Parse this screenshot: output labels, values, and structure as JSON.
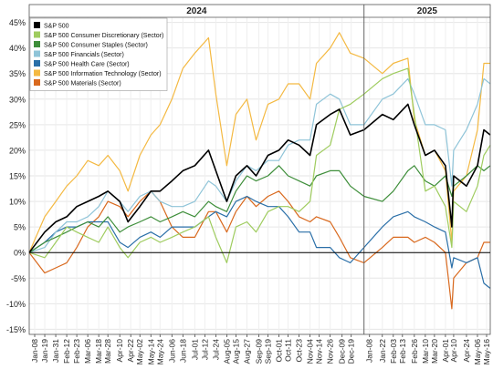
{
  "chart_data": {
    "type": "line",
    "title": "",
    "xlabel": "",
    "ylabel": "",
    "ylim": [
      -0.16,
      0.46
    ],
    "yticks": [
      "45%",
      "40%",
      "35%",
      "30%",
      "25%",
      "20%",
      "15%",
      "10%",
      "5%",
      "0%",
      "-5%",
      "-10%",
      "-15%"
    ],
    "ytick_values": [
      0.45,
      0.4,
      0.35,
      0.3,
      0.25,
      0.2,
      0.15,
      0.1,
      0.05,
      0.0,
      -0.05,
      -0.1,
      -0.15
    ],
    "year_labels": [
      "2024",
      "2025"
    ],
    "x_start": "2024-01-02",
    "x_end": "2025-05-20",
    "year_divider": "2025-01-02",
    "xticks": [
      "Jan-08",
      "Jan-19",
      "Jan-31",
      "Feb-12",
      "Feb-23",
      "Mar-06",
      "Mar-18",
      "Mar-28",
      "Apr-10",
      "Apr-22",
      "May-02",
      "May-14",
      "May-24",
      "Jun-06",
      "Jun-18",
      "Jul-01",
      "Jul-12",
      "Jul-24",
      "Aug-05",
      "Aug-15",
      "Aug-27",
      "Sep-09",
      "Sep-19",
      "Oct-01",
      "Oct-11",
      "Oct-23",
      "Nov-04",
      "Nov-14",
      "Nov-26",
      "Dec-09",
      "Dec-19",
      "Jan-08",
      "Jan-22",
      "Feb-03",
      "Feb-13",
      "Feb-26",
      "Mar-10",
      "Mar-20",
      "Apr-01",
      "Apr-10",
      "Apr-24",
      "May-06",
      "May-16"
    ],
    "xtick_dates": [
      "2024-01-08",
      "2024-01-19",
      "2024-01-31",
      "2024-02-12",
      "2024-02-23",
      "2024-03-06",
      "2024-03-18",
      "2024-03-28",
      "2024-04-10",
      "2024-04-22",
      "2024-05-02",
      "2024-05-14",
      "2024-05-24",
      "2024-06-06",
      "2024-06-18",
      "2024-07-01",
      "2024-07-12",
      "2024-07-24",
      "2024-08-05",
      "2024-08-15",
      "2024-08-27",
      "2024-09-09",
      "2024-09-19",
      "2024-10-01",
      "2024-10-11",
      "2024-10-23",
      "2024-11-04",
      "2024-11-14",
      "2024-11-26",
      "2024-12-09",
      "2024-12-19",
      "2025-01-08",
      "2025-01-22",
      "2025-02-03",
      "2025-02-13",
      "2025-02-26",
      "2025-03-10",
      "2025-03-20",
      "2025-04-01",
      "2025-04-10",
      "2025-04-24",
      "2025-05-06",
      "2025-05-16"
    ],
    "legend_position": "top-left",
    "grid": true,
    "series": [
      {
        "name": "S&P 500",
        "color": "#000000",
        "width": 1.6,
        "x": [
          "2024-01-02",
          "2024-01-19",
          "2024-01-31",
          "2024-02-12",
          "2024-02-23",
          "2024-03-06",
          "2024-03-18",
          "2024-03-28",
          "2024-04-10",
          "2024-04-19",
          "2024-05-02",
          "2024-05-14",
          "2024-05-24",
          "2024-06-06",
          "2024-06-18",
          "2024-07-01",
          "2024-07-16",
          "2024-07-24",
          "2024-08-05",
          "2024-08-15",
          "2024-08-27",
          "2024-09-06",
          "2024-09-19",
          "2024-10-01",
          "2024-10-11",
          "2024-10-23",
          "2024-11-04",
          "2024-11-11",
          "2024-11-26",
          "2024-12-06",
          "2024-12-18",
          "2025-01-02",
          "2025-01-22",
          "2025-02-03",
          "2025-02-19",
          "2025-02-26",
          "2025-03-10",
          "2025-03-20",
          "2025-04-01",
          "2025-04-08",
          "2025-04-10",
          "2025-04-24",
          "2025-05-06",
          "2025-05-13",
          "2025-05-20"
        ],
        "y": [
          0.0,
          0.04,
          0.06,
          0.07,
          0.09,
          0.1,
          0.11,
          0.12,
          0.1,
          0.06,
          0.09,
          0.12,
          0.12,
          0.14,
          0.16,
          0.17,
          0.2,
          0.16,
          0.1,
          0.15,
          0.17,
          0.15,
          0.19,
          0.2,
          0.22,
          0.21,
          0.19,
          0.25,
          0.27,
          0.28,
          0.23,
          0.24,
          0.27,
          0.26,
          0.29,
          0.25,
          0.19,
          0.2,
          0.17,
          0.05,
          0.15,
          0.13,
          0.17,
          0.24,
          0.23
        ]
      },
      {
        "name": "S&P 500 Consumer Discretionary (Sector)",
        "color": "#9fcc5f",
        "width": 1.2,
        "x": [
          "2024-01-02",
          "2024-01-19",
          "2024-01-31",
          "2024-02-12",
          "2024-02-23",
          "2024-03-06",
          "2024-03-18",
          "2024-03-28",
          "2024-04-10",
          "2024-04-19",
          "2024-05-02",
          "2024-05-14",
          "2024-05-24",
          "2024-06-06",
          "2024-06-18",
          "2024-07-01",
          "2024-07-16",
          "2024-07-24",
          "2024-08-05",
          "2024-08-15",
          "2024-08-27",
          "2024-09-06",
          "2024-09-19",
          "2024-10-01",
          "2024-10-11",
          "2024-10-23",
          "2024-11-04",
          "2024-11-11",
          "2024-11-26",
          "2024-12-06",
          "2024-12-18",
          "2025-01-02",
          "2025-01-22",
          "2025-02-03",
          "2025-02-19",
          "2025-02-26",
          "2025-03-10",
          "2025-03-20",
          "2025-04-01",
          "2025-04-08",
          "2025-04-10",
          "2025-04-24",
          "2025-05-06",
          "2025-05-13",
          "2025-05-20"
        ],
        "y": [
          0.0,
          -0.01,
          0.02,
          0.05,
          0.04,
          0.03,
          0.02,
          0.05,
          0.01,
          -0.01,
          0.02,
          0.03,
          0.02,
          0.03,
          0.04,
          0.05,
          0.07,
          0.03,
          -0.02,
          0.05,
          0.06,
          0.04,
          0.08,
          0.09,
          0.09,
          0.08,
          0.1,
          0.19,
          0.21,
          0.28,
          0.29,
          0.31,
          0.34,
          0.35,
          0.36,
          0.27,
          0.12,
          0.13,
          0.09,
          0.01,
          0.1,
          0.08,
          0.13,
          0.19,
          0.21
        ]
      },
      {
        "name": "S&P 500 Consumer Staples (Sector)",
        "color": "#3e8e3a",
        "width": 1.2,
        "x": [
          "2024-01-02",
          "2024-01-19",
          "2024-01-31",
          "2024-02-12",
          "2024-02-23",
          "2024-03-06",
          "2024-03-18",
          "2024-03-28",
          "2024-04-10",
          "2024-04-19",
          "2024-05-02",
          "2024-05-14",
          "2024-05-24",
          "2024-06-06",
          "2024-06-18",
          "2024-07-01",
          "2024-07-16",
          "2024-07-24",
          "2024-08-05",
          "2024-08-15",
          "2024-08-27",
          "2024-09-06",
          "2024-09-19",
          "2024-10-01",
          "2024-10-11",
          "2024-10-23",
          "2024-11-04",
          "2024-11-11",
          "2024-11-26",
          "2024-12-06",
          "2024-12-18",
          "2025-01-02",
          "2025-01-22",
          "2025-02-03",
          "2025-02-19",
          "2025-02-26",
          "2025-03-10",
          "2025-03-20",
          "2025-04-01",
          "2025-04-08",
          "2025-04-10",
          "2025-04-24",
          "2025-05-06",
          "2025-05-13",
          "2025-05-20"
        ],
        "y": [
          0.0,
          0.02,
          0.03,
          0.04,
          0.05,
          0.06,
          0.05,
          0.07,
          0.04,
          0.05,
          0.06,
          0.07,
          0.06,
          0.07,
          0.08,
          0.07,
          0.1,
          0.09,
          0.08,
          0.12,
          0.15,
          0.14,
          0.15,
          0.17,
          0.15,
          0.14,
          0.13,
          0.15,
          0.16,
          0.16,
          0.13,
          0.11,
          0.1,
          0.12,
          0.16,
          0.17,
          0.14,
          0.13,
          0.15,
          0.11,
          0.13,
          0.15,
          0.17,
          0.16,
          0.17
        ]
      },
      {
        "name": "S&P 500 Financials (Sector)",
        "color": "#8fc4d8",
        "width": 1.2,
        "x": [
          "2024-01-02",
          "2024-01-19",
          "2024-01-31",
          "2024-02-12",
          "2024-02-23",
          "2024-03-06",
          "2024-03-18",
          "2024-03-28",
          "2024-04-10",
          "2024-04-19",
          "2024-05-02",
          "2024-05-14",
          "2024-05-24",
          "2024-06-06",
          "2024-06-18",
          "2024-07-01",
          "2024-07-16",
          "2024-07-24",
          "2024-08-05",
          "2024-08-15",
          "2024-08-27",
          "2024-09-06",
          "2024-09-19",
          "2024-10-01",
          "2024-10-11",
          "2024-10-23",
          "2024-11-04",
          "2024-11-11",
          "2024-11-26",
          "2024-12-06",
          "2024-12-18",
          "2025-01-02",
          "2025-01-22",
          "2025-02-03",
          "2025-02-19",
          "2025-02-26",
          "2025-03-10",
          "2025-03-20",
          "2025-04-01",
          "2025-04-08",
          "2025-04-10",
          "2025-04-24",
          "2025-05-06",
          "2025-05-13",
          "2025-05-20"
        ],
        "y": [
          0.0,
          0.01,
          0.04,
          0.06,
          0.06,
          0.07,
          0.09,
          0.12,
          0.1,
          0.08,
          0.11,
          0.12,
          0.1,
          0.09,
          0.09,
          0.1,
          0.14,
          0.13,
          0.1,
          0.14,
          0.17,
          0.16,
          0.18,
          0.18,
          0.21,
          0.22,
          0.22,
          0.29,
          0.31,
          0.3,
          0.25,
          0.25,
          0.3,
          0.31,
          0.34,
          0.31,
          0.25,
          0.25,
          0.24,
          0.13,
          0.2,
          0.24,
          0.29,
          0.34,
          0.33
        ]
      },
      {
        "name": "S&P 500 Health Care (Sector)",
        "color": "#2a6fa8",
        "width": 1.2,
        "x": [
          "2024-01-02",
          "2024-01-19",
          "2024-01-31",
          "2024-02-12",
          "2024-02-23",
          "2024-03-06",
          "2024-03-18",
          "2024-03-28",
          "2024-04-10",
          "2024-04-19",
          "2024-05-02",
          "2024-05-14",
          "2024-05-24",
          "2024-06-06",
          "2024-06-18",
          "2024-07-01",
          "2024-07-16",
          "2024-07-24",
          "2024-08-05",
          "2024-08-15",
          "2024-08-27",
          "2024-09-06",
          "2024-09-19",
          "2024-10-01",
          "2024-10-11",
          "2024-10-23",
          "2024-11-04",
          "2024-11-11",
          "2024-11-26",
          "2024-12-06",
          "2024-12-18",
          "2025-01-02",
          "2025-01-22",
          "2025-02-03",
          "2025-02-19",
          "2025-02-26",
          "2025-03-10",
          "2025-03-20",
          "2025-04-01",
          "2025-04-08",
          "2025-04-10",
          "2025-04-24",
          "2025-05-06",
          "2025-05-13",
          "2025-05-20"
        ],
        "y": [
          0.0,
          0.02,
          0.04,
          0.05,
          0.05,
          0.06,
          0.06,
          0.06,
          0.02,
          0.01,
          0.03,
          0.04,
          0.03,
          0.05,
          0.05,
          0.05,
          0.07,
          0.08,
          0.07,
          0.1,
          0.11,
          0.1,
          0.09,
          0.09,
          0.07,
          0.04,
          0.04,
          0.01,
          0.01,
          -0.01,
          -0.02,
          0.01,
          0.05,
          0.07,
          0.08,
          0.07,
          0.06,
          0.05,
          0.04,
          -0.03,
          -0.01,
          -0.02,
          -0.01,
          -0.06,
          -0.07
        ]
      },
      {
        "name": "S&P 500 Information Technology (Sector)",
        "color": "#f4b942",
        "width": 1.2,
        "x": [
          "2024-01-02",
          "2024-01-19",
          "2024-01-31",
          "2024-02-12",
          "2024-02-23",
          "2024-03-06",
          "2024-03-18",
          "2024-03-28",
          "2024-04-10",
          "2024-04-19",
          "2024-05-02",
          "2024-05-14",
          "2024-05-24",
          "2024-06-06",
          "2024-06-18",
          "2024-07-01",
          "2024-07-16",
          "2024-07-24",
          "2024-08-05",
          "2024-08-15",
          "2024-08-27",
          "2024-09-06",
          "2024-09-19",
          "2024-10-01",
          "2024-10-11",
          "2024-10-23",
          "2024-11-04",
          "2024-11-11",
          "2024-11-26",
          "2024-12-06",
          "2024-12-18",
          "2025-01-02",
          "2025-01-22",
          "2025-02-03",
          "2025-02-19",
          "2025-02-26",
          "2025-03-10",
          "2025-03-20",
          "2025-04-01",
          "2025-04-08",
          "2025-04-10",
          "2025-04-24",
          "2025-05-06",
          "2025-05-13",
          "2025-05-20"
        ],
        "y": [
          0.0,
          0.07,
          0.1,
          0.13,
          0.15,
          0.18,
          0.17,
          0.19,
          0.16,
          0.12,
          0.19,
          0.23,
          0.25,
          0.3,
          0.36,
          0.39,
          0.42,
          0.31,
          0.17,
          0.27,
          0.3,
          0.22,
          0.29,
          0.3,
          0.33,
          0.33,
          0.3,
          0.37,
          0.4,
          0.43,
          0.39,
          0.38,
          0.35,
          0.37,
          0.38,
          0.26,
          0.19,
          0.2,
          0.16,
          0.02,
          0.12,
          0.15,
          0.24,
          0.37,
          0.37
        ]
      },
      {
        "name": "S&P 500 Materials (Sector)",
        "color": "#d9691e",
        "width": 1.2,
        "x": [
          "2024-01-02",
          "2024-01-19",
          "2024-01-31",
          "2024-02-12",
          "2024-02-23",
          "2024-03-06",
          "2024-03-18",
          "2024-03-28",
          "2024-04-10",
          "2024-04-19",
          "2024-05-02",
          "2024-05-14",
          "2024-05-24",
          "2024-06-06",
          "2024-06-18",
          "2024-07-01",
          "2024-07-16",
          "2024-07-24",
          "2024-08-05",
          "2024-08-15",
          "2024-08-27",
          "2024-09-06",
          "2024-09-19",
          "2024-10-01",
          "2024-10-11",
          "2024-10-23",
          "2024-11-04",
          "2024-11-11",
          "2024-11-26",
          "2024-12-06",
          "2024-12-18",
          "2025-01-02",
          "2025-01-22",
          "2025-02-03",
          "2025-02-19",
          "2025-02-26",
          "2025-03-10",
          "2025-03-20",
          "2025-04-01",
          "2025-04-08",
          "2025-04-10",
          "2025-04-24",
          "2025-05-06",
          "2025-05-13",
          "2025-05-20"
        ],
        "y": [
          0.0,
          -0.04,
          -0.03,
          -0.02,
          0.01,
          0.05,
          0.07,
          0.1,
          0.09,
          0.07,
          0.1,
          0.12,
          0.1,
          0.05,
          0.03,
          0.03,
          0.08,
          0.08,
          0.04,
          0.08,
          0.11,
          0.09,
          0.11,
          0.12,
          0.1,
          0.07,
          0.06,
          0.07,
          0.06,
          0.03,
          -0.01,
          -0.02,
          0.01,
          0.03,
          0.03,
          0.02,
          0.03,
          0.02,
          0.0,
          -0.11,
          -0.05,
          -0.02,
          -0.01,
          0.02,
          0.02
        ]
      }
    ]
  }
}
